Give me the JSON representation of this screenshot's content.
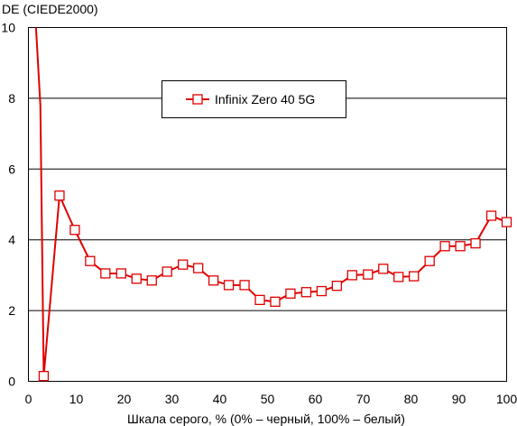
{
  "chart_data": {
    "type": "line",
    "ylabel": "DE (CIEDE2000)",
    "xlabel": "Шкала серого, % (0% – черный, 100% – белый)",
    "xlim": [
      0,
      100
    ],
    "ylim": [
      0,
      10
    ],
    "x_ticks": [
      "0",
      "10",
      "20",
      "30",
      "40",
      "50",
      "60",
      "70",
      "80",
      "90",
      "100"
    ],
    "y_ticks": [
      "0",
      "2",
      "4",
      "6",
      "8",
      "10"
    ],
    "grid": "horizontal",
    "legend_position": "upper-center",
    "series": [
      {
        "name": "Infinix Zero 40 5G",
        "color": "#e00000",
        "line_x": [
          1.5,
          2.5,
          3.2,
          6.5,
          9.7,
          12.9,
          16.1,
          19.4,
          22.6,
          25.8,
          29.0,
          32.3,
          35.5,
          38.7,
          41.9,
          45.2,
          48.4,
          51.6,
          54.8,
          58.1,
          61.3,
          64.5,
          67.7,
          71.0,
          74.2,
          77.4,
          80.6,
          83.9,
          87.1,
          90.3,
          93.5,
          96.8,
          100
        ],
        "line_y": [
          10.2,
          7.8,
          0.15,
          5.25,
          4.28,
          3.4,
          3.05,
          3.05,
          2.9,
          2.85,
          3.1,
          3.3,
          3.2,
          2.85,
          2.72,
          2.72,
          2.3,
          2.25,
          2.48,
          2.52,
          2.55,
          2.7,
          3.0,
          3.02,
          3.18,
          2.95,
          2.97,
          3.4,
          3.82,
          3.82,
          3.9,
          4.68,
          4.5
        ],
        "marker_x": [
          3.2,
          6.5,
          9.7,
          12.9,
          16.1,
          19.4,
          22.6,
          25.8,
          29.0,
          32.3,
          35.5,
          38.7,
          41.9,
          45.2,
          48.4,
          51.6,
          54.8,
          58.1,
          61.3,
          64.5,
          67.7,
          71.0,
          74.2,
          77.4,
          80.6,
          83.9,
          87.1,
          90.3,
          93.5,
          96.8,
          100
        ],
        "marker_y": [
          0.15,
          5.25,
          4.28,
          3.4,
          3.05,
          3.05,
          2.9,
          2.85,
          3.1,
          3.3,
          3.2,
          2.85,
          2.72,
          2.72,
          2.3,
          2.25,
          2.48,
          2.52,
          2.55,
          2.7,
          3.0,
          3.02,
          3.18,
          2.95,
          2.97,
          3.4,
          3.82,
          3.82,
          3.9,
          4.68,
          4.5
        ]
      }
    ]
  }
}
